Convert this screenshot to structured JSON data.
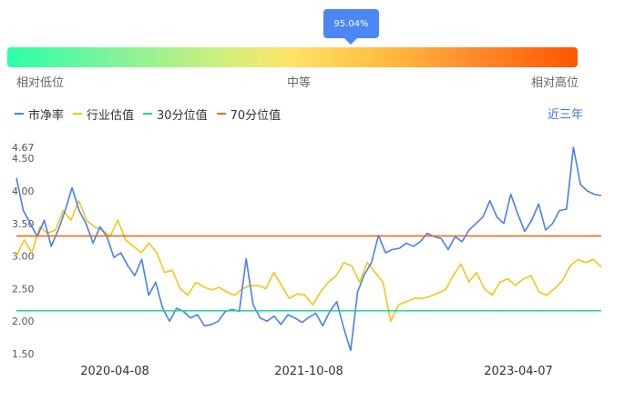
{
  "gauge": {
    "percentile": "95.04%",
    "low_label": "相对低位",
    "mid_label": "中等",
    "high_label": "相对高位"
  },
  "legend": {
    "items": [
      {
        "label": "市净率",
        "color": "#4a7ff0"
      },
      {
        "label": "行业估值",
        "color": "#f5c518"
      },
      {
        "label": "30分位值",
        "color": "#22d68f"
      },
      {
        "label": "70分位值",
        "color": "#ee6b1a"
      }
    ],
    "range_label": "近三年"
  },
  "chart_data": {
    "type": "line",
    "x_ticks": [
      "2020-04-08",
      "2021-10-08",
      "2023-04-07"
    ],
    "y_ticks": [
      "1.50",
      "2.00",
      "2.50",
      "3.00",
      "3.50",
      "4.00",
      "4.50",
      "4.67"
    ],
    "ylim": [
      1.5,
      4.67
    ],
    "reference_lines": [
      {
        "name": "30分位值",
        "value": 2.16,
        "color": "#22d68f"
      },
      {
        "name": "70分位值",
        "value": 3.31,
        "color": "#ee6b1a"
      }
    ],
    "series": [
      {
        "name": "市净率",
        "color": "#4a7ff0",
        "values": [
          4.2,
          3.7,
          3.5,
          3.3,
          3.55,
          3.15,
          3.4,
          3.7,
          4.05,
          3.7,
          3.5,
          3.2,
          3.45,
          3.3,
          2.98,
          3.05,
          2.85,
          2.7,
          2.95,
          2.4,
          2.6,
          2.2,
          2.0,
          2.2,
          2.15,
          2.05,
          2.1,
          1.93,
          1.95,
          2.0,
          2.15,
          2.18,
          2.15,
          2.96,
          2.25,
          2.05,
          2.0,
          2.08,
          1.95,
          2.1,
          2.05,
          1.98,
          2.06,
          2.12,
          1.93,
          2.15,
          2.3,
          1.9,
          1.55,
          2.45,
          2.72,
          2.9,
          3.32,
          3.05,
          3.1,
          3.12,
          3.2,
          3.15,
          3.22,
          3.35,
          3.3,
          3.27,
          3.1,
          3.3,
          3.22,
          3.4,
          3.5,
          3.6,
          3.85,
          3.6,
          3.5,
          3.95,
          3.65,
          3.38,
          3.55,
          3.8,
          3.4,
          3.5,
          3.7,
          3.72,
          4.67,
          4.1,
          4.0,
          3.95,
          3.93
        ]
      },
      {
        "name": "行业估值",
        "color": "#f5c518",
        "values": [
          3.0,
          3.25,
          3.05,
          3.45,
          3.35,
          3.4,
          3.7,
          3.55,
          3.85,
          3.55,
          3.45,
          3.4,
          3.3,
          3.55,
          3.25,
          3.15,
          3.05,
          3.2,
          3.05,
          2.75,
          2.78,
          2.5,
          2.4,
          2.6,
          2.53,
          2.48,
          2.52,
          2.45,
          2.4,
          2.5,
          2.55,
          2.55,
          2.5,
          2.75,
          2.55,
          2.35,
          2.42,
          2.4,
          2.25,
          2.45,
          2.6,
          2.7,
          2.9,
          2.85,
          2.6,
          2.9,
          2.75,
          2.6,
          2.0,
          2.25,
          2.3,
          2.35,
          2.35,
          2.38,
          2.43,
          2.48,
          2.7,
          2.88,
          2.6,
          2.75,
          2.5,
          2.4,
          2.6,
          2.65,
          2.55,
          2.65,
          2.7,
          2.45,
          2.4,
          2.5,
          2.62,
          2.85,
          2.95,
          2.9,
          2.95,
          2.83
        ]
      }
    ]
  }
}
